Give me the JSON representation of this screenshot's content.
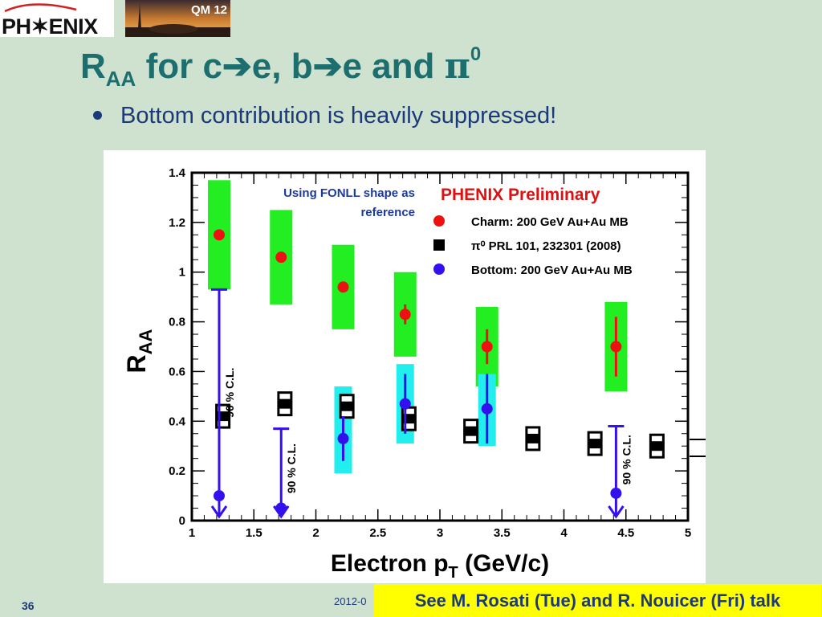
{
  "logo": {
    "text": "PH✶ENIX"
  },
  "photo": {
    "badge": "QM 12"
  },
  "title": {
    "r": "R",
    "sub": "AA",
    "rest1": " for c",
    "arrow": "➔",
    "rest2": "e, b",
    "rest3": "e and ",
    "pi": "π",
    "sup": "0"
  },
  "bullet": {
    "text": "Bottom contribution is heavily suppressed!"
  },
  "footer": {
    "slide_number": "36",
    "date": "2012-0"
  },
  "note": {
    "text": "See M. Rosati (Tue) and R. Nouicer (Fri) talk"
  },
  "colors": {
    "title": "#1d6e6e",
    "text": "#1d3a78",
    "charm": "#ee1111",
    "bottom": "#3311ee",
    "charm_sys": "#22ee22",
    "bottom_sys": "#22eeee",
    "pi0": "#000000",
    "note_bg": "#ffff00",
    "red_label": "#dd1111",
    "blue_label": "#1d3a9a"
  },
  "chart_data": {
    "type": "scatter",
    "title": "PHENIX Preliminary",
    "annotation": "Using FONLL shape as reference",
    "xlabel": "Electron p",
    "xlabel_sub": "T",
    "xlabel_unit": " (GeV/c)",
    "ylabel": "R",
    "ylabel_sub": "AA",
    "xlim": [
      1,
      5
    ],
    "ylim": [
      0,
      1.4
    ],
    "x_ticks": [
      "1",
      "1.5",
      "2",
      "2.5",
      "3",
      "3.5",
      "4",
      "4.5",
      "5"
    ],
    "y_ticks": [
      "0",
      "0.2",
      "0.4",
      "0.6",
      "0.8",
      "1",
      "1.2",
      "1.4"
    ],
    "legend": {
      "placement": "top-right",
      "entries": [
        {
          "name": "Charm: 200 GeV Au+Au MB",
          "marker": "circle",
          "color": "#ee1111"
        },
        {
          "name": "π⁰ PRL 101, 232301 (2008)",
          "marker": "square",
          "color": "#000000"
        },
        {
          "name": "Bottom: 200 GeV Au+Au MB",
          "marker": "circle",
          "color": "#3311ee"
        }
      ]
    },
    "charm": [
      {
        "x": 1.22,
        "y": 1.15,
        "stat": 0.02,
        "sys": [
          0.93,
          1.37
        ]
      },
      {
        "x": 1.72,
        "y": 1.06,
        "stat": 0.02,
        "sys": [
          0.87,
          1.25
        ]
      },
      {
        "x": 2.22,
        "y": 0.94,
        "stat": 0.02,
        "sys": [
          0.77,
          1.11
        ]
      },
      {
        "x": 2.72,
        "y": 0.83,
        "stat": 0.04,
        "sys": [
          0.66,
          1.0
        ]
      },
      {
        "x": 3.38,
        "y": 0.7,
        "stat": 0.07,
        "sys": [
          0.54,
          0.86
        ]
      },
      {
        "x": 4.42,
        "y": 0.7,
        "stat": 0.12,
        "sys": [
          0.52,
          0.88
        ]
      }
    ],
    "bottom": [
      {
        "x": 2.22,
        "y": 0.33,
        "stat": 0.09,
        "sys": [
          0.19,
          0.54
        ]
      },
      {
        "x": 2.72,
        "y": 0.47,
        "stat": 0.12,
        "sys": [
          0.31,
          0.63
        ]
      },
      {
        "x": 3.38,
        "y": 0.45,
        "stat": 0.14,
        "sys": [
          0.3,
          0.59
        ]
      }
    ],
    "bottom_limits": [
      {
        "x": 1.22,
        "y": 0.1,
        "upper": 0.93,
        "label": "90 % C.L."
      },
      {
        "x": 1.72,
        "y": 0.05,
        "upper": 0.37,
        "label": "90 % C.L."
      },
      {
        "x": 4.42,
        "y": 0.11,
        "upper": 0.38,
        "label": "90 % C.L."
      }
    ],
    "pi0": [
      {
        "x": 1.25,
        "y": 0.42
      },
      {
        "x": 1.75,
        "y": 0.47
      },
      {
        "x": 2.25,
        "y": 0.46
      },
      {
        "x": 2.75,
        "y": 0.41
      },
      {
        "x": 3.25,
        "y": 0.36
      },
      {
        "x": 3.75,
        "y": 0.33
      },
      {
        "x": 4.25,
        "y": 0.31
      },
      {
        "x": 4.75,
        "y": 0.3
      }
    ]
  }
}
